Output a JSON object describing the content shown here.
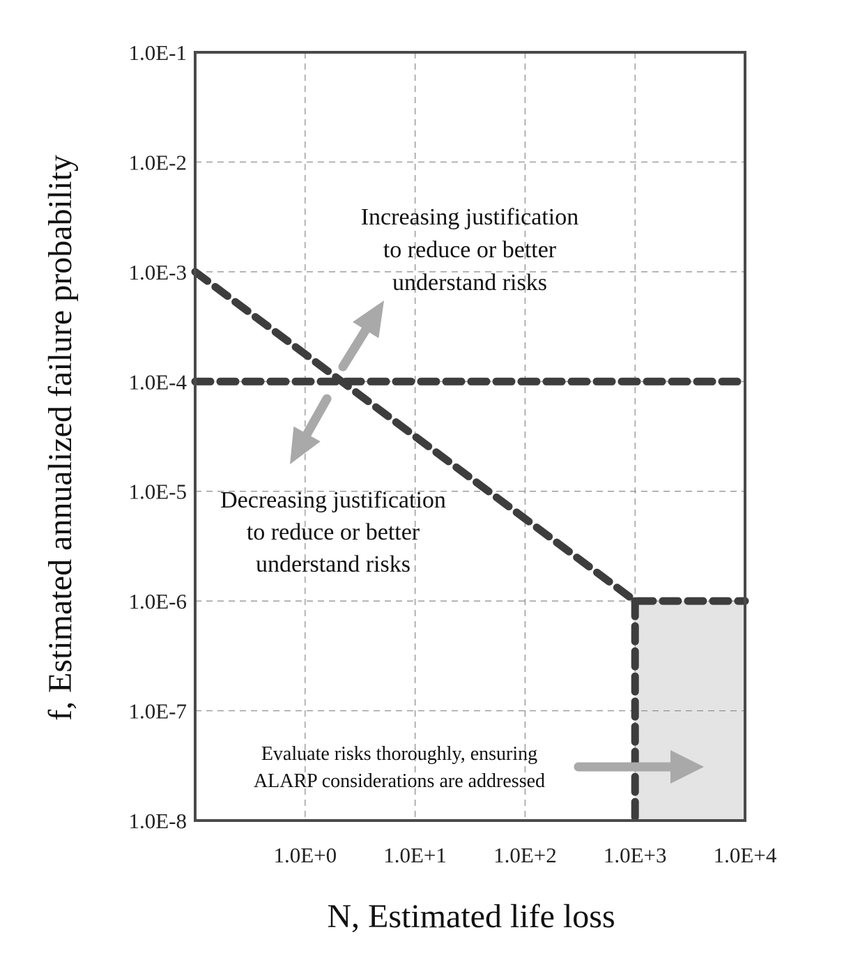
{
  "chart_data": {
    "type": "line",
    "xscale": "log",
    "yscale": "log",
    "xlim": [
      0.1,
      10000
    ],
    "ylim": [
      1e-08,
      0.1
    ],
    "grid": true,
    "xlabel": "N, Estimated life loss",
    "ylabel": "f, Estimated annualized failure probability",
    "x_ticks": [
      1,
      10,
      100,
      1000,
      10000
    ],
    "x_tick_labels": [
      "1.0E+0",
      "1.0E+1",
      "1.0E+2",
      "1.0E+3",
      "1.0E+4"
    ],
    "y_ticks": [
      1e-08,
      1e-07,
      1e-06,
      1e-05,
      0.0001,
      0.001,
      0.01,
      0.1
    ],
    "y_tick_labels": [
      "1.0E-8",
      "1.0E-7",
      "1.0E-6",
      "1.0E-5",
      "1.0E-4",
      "1.0E-3",
      "1.0E-2",
      "1.0E-1"
    ],
    "series": [
      {
        "points": [
          [
            0.1,
            0.0001
          ],
          [
            10000,
            0.0001
          ]
        ],
        "color": "#3d3d3d",
        "style": "dashed"
      },
      {
        "points": [
          [
            0.1,
            0.001
          ],
          [
            1000,
            1e-06
          ],
          [
            10000,
            1e-06
          ]
        ],
        "color": "#3d3d3d",
        "style": "dashed"
      },
      {
        "points": [
          [
            1000,
            1e-06
          ],
          [
            1000,
            1e-08
          ]
        ],
        "color": "#3d3d3d",
        "style": "dashed"
      }
    ],
    "shaded_region": {
      "x": [
        1000,
        10000
      ],
      "y": [
        1e-08,
        1e-06
      ],
      "color": "#e4e4e4"
    },
    "annotations": [
      {
        "lines": [
          "Increasing justification",
          "to reduce or better",
          "understand risks"
        ]
      },
      {
        "lines": [
          "Decreasing justification",
          "to reduce or better",
          "understand risks"
        ]
      },
      {
        "lines": [
          "Evaluate risks thoroughly, ensuring",
          "ALARP considerations are addressed"
        ]
      }
    ],
    "colors": {
      "criteria_line": "#3d3d3d",
      "arrow": "#a9a9a9",
      "shade": "#e4e4e4",
      "frame": "#4a4a4a",
      "grid": "#8a8a8a"
    }
  }
}
